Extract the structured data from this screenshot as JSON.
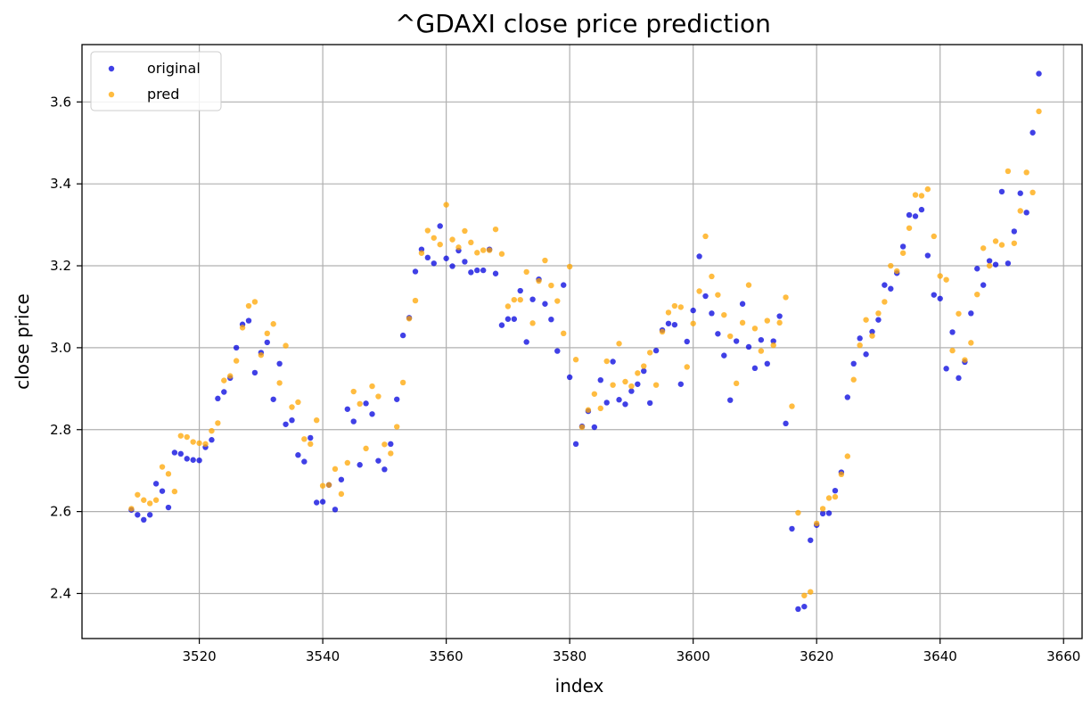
{
  "chart_data": {
    "type": "scatter",
    "title": "^GDAXI close price prediction",
    "xlabel": "index",
    "ylabel": "close price",
    "xlim": [
      3501,
      3663
    ],
    "ylim": [
      2.29,
      3.74
    ],
    "xticks": [
      3520,
      3540,
      3560,
      3580,
      3600,
      3620,
      3640,
      3660
    ],
    "yticks": [
      2.4,
      2.6,
      2.8,
      3.0,
      3.2,
      3.4,
      3.6
    ],
    "grid": true,
    "legend_position": "top-left",
    "x_start": 3509,
    "series": [
      {
        "name": "original",
        "color": "#0000dd",
        "values": [
          2.604,
          2.592,
          2.58,
          2.592,
          2.668,
          2.65,
          2.61,
          2.744,
          2.741,
          2.729,
          2.726,
          2.725,
          2.757,
          2.775,
          2.876,
          2.892,
          2.926,
          3.0,
          3.057,
          3.066,
          2.939,
          2.988,
          3.013,
          2.874,
          2.961,
          2.813,
          2.823,
          2.738,
          2.722,
          2.78,
          2.622,
          2.624,
          2.665,
          2.605,
          2.678,
          2.85,
          2.82,
          2.714,
          2.864,
          2.838,
          2.724,
          2.703,
          2.765,
          2.874,
          3.03,
          3.073,
          3.186,
          3.24,
          3.22,
          3.206,
          3.297,
          3.218,
          3.199,
          3.237,
          3.21,
          3.184,
          3.189,
          3.189,
          3.24,
          3.181,
          3.055,
          3.07,
          3.07,
          3.139,
          3.014,
          3.118,
          3.167,
          3.107,
          3.069,
          2.992,
          3.153,
          2.928,
          2.765,
          2.808,
          2.845,
          2.806,
          2.921,
          2.866,
          2.966,
          2.873,
          2.862,
          2.894,
          2.911,
          2.943,
          2.865,
          2.993,
          3.043,
          3.059,
          3.056,
          2.911,
          3.015,
          3.091,
          3.223,
          3.126,
          3.084,
          3.034,
          2.981,
          2.872,
          3.016,
          3.107,
          3.002,
          2.95,
          3.019,
          2.961,
          3.016,
          3.077,
          2.815,
          2.558,
          2.362,
          2.368,
          2.53,
          2.567,
          2.595,
          2.596,
          2.651,
          2.696,
          2.879,
          2.961,
          3.023,
          2.984,
          3.039,
          3.068,
          3.153,
          3.144,
          3.182,
          3.247,
          3.324,
          3.321,
          3.337,
          3.225,
          3.129,
          3.12,
          2.949,
          3.038,
          2.926,
          2.965,
          3.084,
          3.193,
          3.153,
          3.212,
          3.203,
          3.381,
          3.206,
          3.284,
          3.377,
          3.33,
          3.525,
          3.669
        ]
      },
      {
        "name": "pred",
        "color": "#ffa500",
        "values": [
          2.607,
          2.641,
          2.628,
          2.62,
          2.628,
          2.709,
          2.692,
          2.649,
          2.785,
          2.782,
          2.77,
          2.767,
          2.765,
          2.797,
          2.816,
          2.92,
          2.931,
          2.968,
          3.049,
          3.102,
          3.112,
          2.982,
          3.035,
          3.058,
          2.914,
          3.005,
          2.855,
          2.867,
          2.777,
          2.765,
          2.823,
          2.663,
          2.665,
          2.704,
          2.643,
          2.719,
          2.893,
          2.863,
          2.754,
          2.906,
          2.881,
          2.764,
          2.742,
          2.807,
          2.915,
          3.071,
          3.115,
          3.231,
          3.286,
          3.268,
          3.252,
          3.349,
          3.264,
          3.245,
          3.285,
          3.257,
          3.232,
          3.238,
          3.238,
          3.289,
          3.229,
          3.101,
          3.117,
          3.117,
          3.185,
          3.06,
          3.163,
          3.213,
          3.152,
          3.114,
          3.035,
          3.198,
          2.971,
          2.806,
          2.848,
          2.887,
          2.852,
          2.967,
          2.909,
          3.01,
          2.917,
          2.906,
          2.938,
          2.955,
          2.988,
          2.909,
          3.039,
          3.086,
          3.102,
          3.099,
          2.953,
          3.059,
          3.138,
          3.272,
          3.174,
          3.129,
          3.08,
          3.028,
          2.913,
          3.061,
          3.153,
          3.047,
          2.992,
          3.066,
          3.006,
          3.061,
          3.123,
          2.857,
          2.597,
          2.395,
          2.404,
          2.571,
          2.607,
          2.633,
          2.636,
          2.691,
          2.735,
          2.922,
          3.006,
          3.068,
          3.029,
          3.084,
          3.112,
          3.2,
          3.187,
          3.231,
          3.292,
          3.373,
          3.371,
          3.387,
          3.272,
          3.175,
          3.166,
          2.993,
          3.083,
          2.97,
          3.012,
          3.13,
          3.243,
          3.2,
          3.26,
          3.251,
          3.431,
          3.255,
          3.334,
          3.428,
          3.379,
          3.577
        ]
      }
    ]
  }
}
